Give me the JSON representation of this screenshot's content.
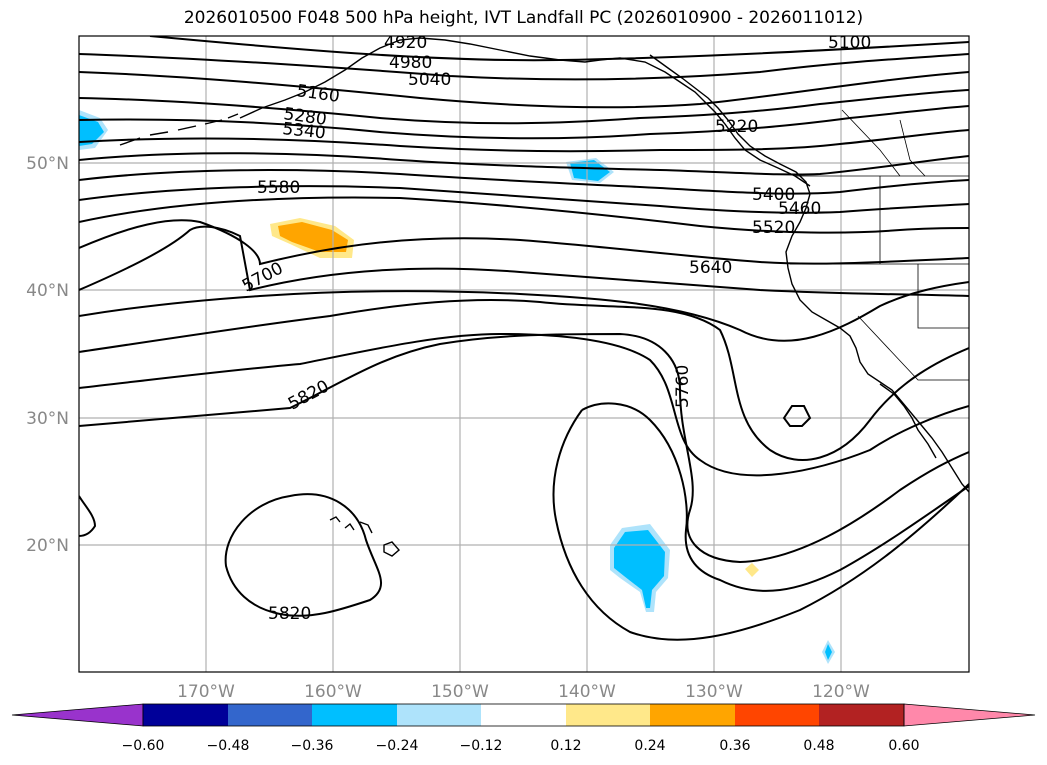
{
  "title": "2026010500 F048 500 hPa height, IVT Landfall PC (2026010900 - 2026011012)",
  "lon_labels": [
    "170°W",
    "160°W",
    "150°W",
    "140°W",
    "130°W",
    "120°W"
  ],
  "lat_labels": [
    "50°N",
    "40°N",
    "30°N",
    "20°N"
  ],
  "contour_labels": [
    "4920",
    "4980",
    "5040",
    "5100",
    "5160",
    "5280",
    "5340",
    "5220",
    "5400",
    "5460",
    "5520",
    "5580",
    "5640",
    "5700",
    "5760",
    "5820",
    "5820"
  ],
  "colorbar": {
    "ticks": [
      "−0.60",
      "−0.48",
      "−0.36",
      "−0.24",
      "−0.12",
      "0.12",
      "0.24",
      "0.36",
      "0.48",
      "0.60"
    ],
    "colors": [
      "#9933cc",
      "#000099",
      "#3366cc",
      "#00bfff",
      "#aee3fb",
      "#ffffff",
      "#ffe88a",
      "#ffa500",
      "#ff4500",
      "#b22222",
      "#ff88aa"
    ]
  }
}
